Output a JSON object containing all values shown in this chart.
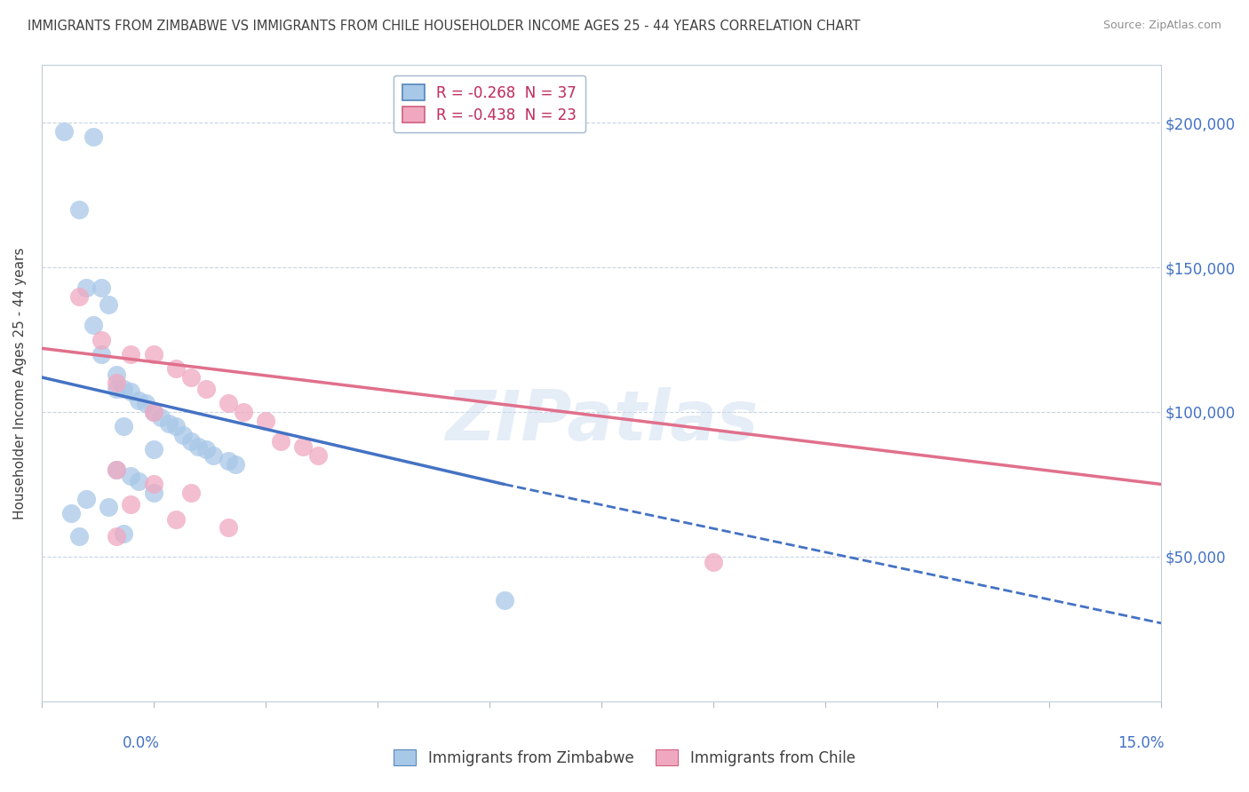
{
  "title": "IMMIGRANTS FROM ZIMBABWE VS IMMIGRANTS FROM CHILE HOUSEHOLDER INCOME AGES 25 - 44 YEARS CORRELATION CHART",
  "source": "Source: ZipAtlas.com",
  "ylabel": "Householder Income Ages 25 - 44 years",
  "xlim": [
    0.0,
    15.0
  ],
  "ylim": [
    0,
    220000
  ],
  "yticks": [
    50000,
    100000,
    150000,
    200000
  ],
  "ytick_labels": [
    "$50,000",
    "$100,000",
    "$150,000",
    "$200,000"
  ],
  "zimbabwe_color": "#a8c8e8",
  "chile_color": "#f0a8c0",
  "zimbabwe_line_color": "#4472c4",
  "chile_line_color": "#e0708c",
  "zimbabwe_scatter_x": [
    0.3,
    0.5,
    0.7,
    0.8,
    0.9,
    1.0,
    1.0,
    1.1,
    1.1,
    1.2,
    1.3,
    1.4,
    1.5,
    1.5,
    1.6,
    1.7,
    1.8,
    1.9,
    2.0,
    2.1,
    2.2,
    2.3,
    2.5,
    2.6,
    0.6,
    0.7,
    0.8,
    1.0,
    1.2,
    1.3,
    1.5,
    0.4,
    0.5,
    0.6,
    0.9,
    6.2,
    1.1
  ],
  "zimbabwe_scatter_y": [
    197000,
    170000,
    195000,
    143000,
    137000,
    113000,
    108000,
    108000,
    95000,
    107000,
    104000,
    103000,
    100000,
    87000,
    98000,
    96000,
    95000,
    92000,
    90000,
    88000,
    87000,
    85000,
    83000,
    82000,
    143000,
    130000,
    120000,
    80000,
    78000,
    76000,
    72000,
    65000,
    57000,
    70000,
    67000,
    35000,
    58000
  ],
  "chile_scatter_x": [
    0.5,
    0.8,
    1.0,
    1.2,
    1.5,
    1.5,
    1.8,
    2.0,
    2.2,
    2.5,
    2.7,
    3.0,
    3.2,
    3.5,
    3.7,
    1.0,
    1.5,
    2.0,
    1.2,
    1.8,
    9.0,
    2.5,
    1.0
  ],
  "chile_scatter_y": [
    140000,
    125000,
    110000,
    120000,
    120000,
    100000,
    115000,
    112000,
    108000,
    103000,
    100000,
    97000,
    90000,
    88000,
    85000,
    80000,
    75000,
    72000,
    68000,
    63000,
    48000,
    60000,
    57000
  ],
  "zimbabwe_line_x0": 0.0,
  "zimbabwe_line_y0": 112000,
  "zimbabwe_line_x1": 6.2,
  "zimbabwe_line_y1": 75000,
  "zimbabwe_dash_x0": 6.2,
  "zimbabwe_dash_y0": 75000,
  "zimbabwe_dash_x1": 15.0,
  "zimbabwe_dash_y1": 27000,
  "chile_line_x0": 0.0,
  "chile_line_y0": 122000,
  "chile_line_x1": 15.0,
  "chile_line_y1": 75000,
  "bg_color": "#ffffff",
  "grid_color": "#c8d4e4",
  "title_color": "#404040",
  "tick_label_color": "#4472c4",
  "legend_zim_label": "R = -0.268  N = 37",
  "legend_chile_label": "R = -0.438  N = 23",
  "bottom_legend_zim": "Immigrants from Zimbabwe",
  "bottom_legend_chile": "Immigrants from Chile",
  "watermark_text": "ZIPatlas"
}
